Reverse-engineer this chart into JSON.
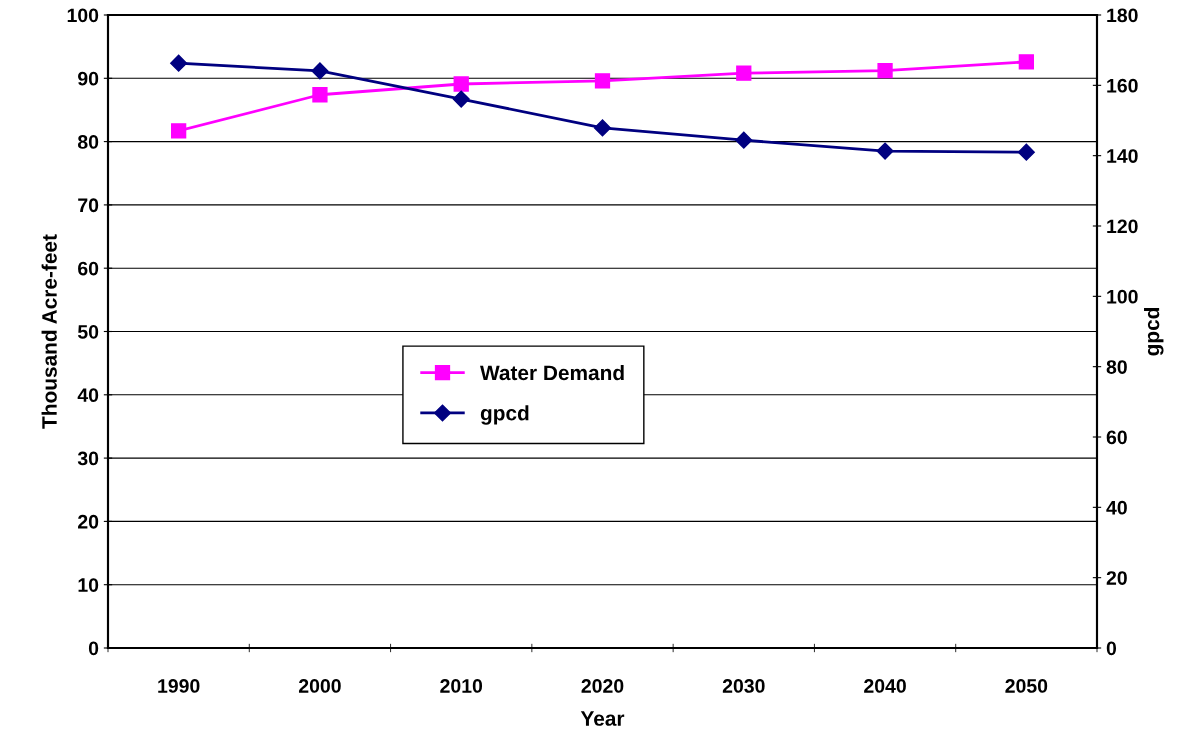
{
  "chart_data": {
    "type": "line",
    "xlabel": "Year",
    "ylabel": "Thousand Acre-feet",
    "y2label": "gpcd",
    "categories": [
      "1990",
      "2000",
      "2010",
      "2020",
      "2030",
      "2040",
      "2050"
    ],
    "series": [
      {
        "name": "Water Demand",
        "color": "#ff00ff",
        "marker": "square",
        "values": [
          81.7,
          87.4,
          89.1,
          89.6,
          90.8,
          91.2,
          92.6
        ]
      },
      {
        "name": "gpcd",
        "color": "#000080",
        "marker": "diamond",
        "axis": "y2",
        "values": [
          166.3,
          164.1,
          156.1,
          147.9,
          144.4,
          141.3,
          141.0
        ]
      }
    ],
    "ylim": [
      0,
      100
    ],
    "yticks": [
      0,
      10,
      20,
      30,
      40,
      50,
      60,
      70,
      80,
      90,
      100
    ],
    "y2lim": [
      0,
      180
    ],
    "y2ticks": [
      0,
      20,
      40,
      60,
      80,
      100,
      120,
      140,
      160,
      180
    ],
    "grid": "y",
    "legend": "center",
    "line_style": "solid"
  }
}
